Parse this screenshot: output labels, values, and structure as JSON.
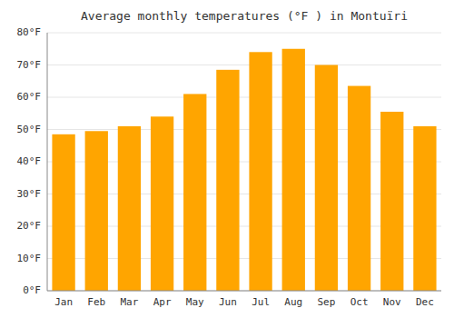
{
  "chart_data": {
    "type": "bar",
    "title": "Average monthly temperatures (°F ) in Montuïri",
    "categories": [
      "Jan",
      "Feb",
      "Mar",
      "Apr",
      "May",
      "Jun",
      "Jul",
      "Aug",
      "Sep",
      "Oct",
      "Nov",
      "Dec"
    ],
    "values": [
      48.5,
      49.5,
      51.0,
      54.0,
      61.0,
      68.5,
      74.0,
      75.0,
      70.0,
      63.5,
      55.5,
      51.0
    ],
    "color": "#FFA500",
    "ylim": [
      0,
      80
    ],
    "yticks": [
      {
        "value": 0,
        "label": "0°F"
      },
      {
        "value": 10,
        "label": "10°F"
      },
      {
        "value": 20,
        "label": "20°F"
      },
      {
        "value": 30,
        "label": "30°F"
      },
      {
        "value": 40,
        "label": "40°F"
      },
      {
        "value": 50,
        "label": "50°F"
      },
      {
        "value": 60,
        "label": "60°F"
      },
      {
        "value": 70,
        "label": "70°F"
      },
      {
        "value": 80,
        "label": "80°F"
      }
    ],
    "grid": true
  }
}
